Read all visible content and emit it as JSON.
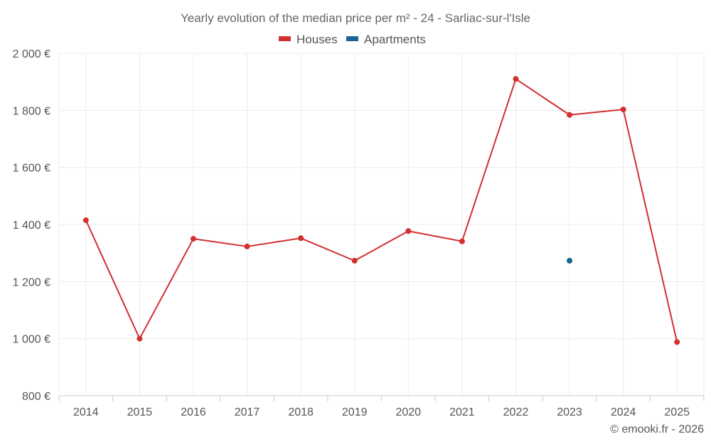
{
  "chart_data": {
    "type": "line",
    "title": "Yearly evolution of the median price per m² - 24 - Sarliac-sur-l'Isle",
    "xlabel": "",
    "ylabel": "",
    "categories": [
      "2014",
      "2015",
      "2016",
      "2017",
      "2018",
      "2019",
      "2020",
      "2021",
      "2022",
      "2023",
      "2024",
      "2025"
    ],
    "ylim": [
      800,
      2000
    ],
    "yticks": [
      800,
      1000,
      1200,
      1400,
      1600,
      1800,
      2000
    ],
    "ytick_labels": [
      "800 €",
      "1 000 €",
      "1 200 €",
      "1 400 €",
      "1 600 €",
      "1 800 €",
      "2 000 €"
    ],
    "grid": true,
    "legend_position": "top-center",
    "series": [
      {
        "name": "Houses",
        "color": "#d32f2f",
        "values": [
          1415,
          1000,
          1350,
          1323,
          1352,
          1273,
          1377,
          1341,
          1910,
          1784,
          1803,
          988
        ]
      },
      {
        "name": "Apartments",
        "color": "#1a6496",
        "values": [
          null,
          null,
          null,
          null,
          null,
          null,
          null,
          null,
          null,
          1273,
          null,
          null
        ]
      }
    ]
  },
  "credit": "© emooki.fr - 2026"
}
